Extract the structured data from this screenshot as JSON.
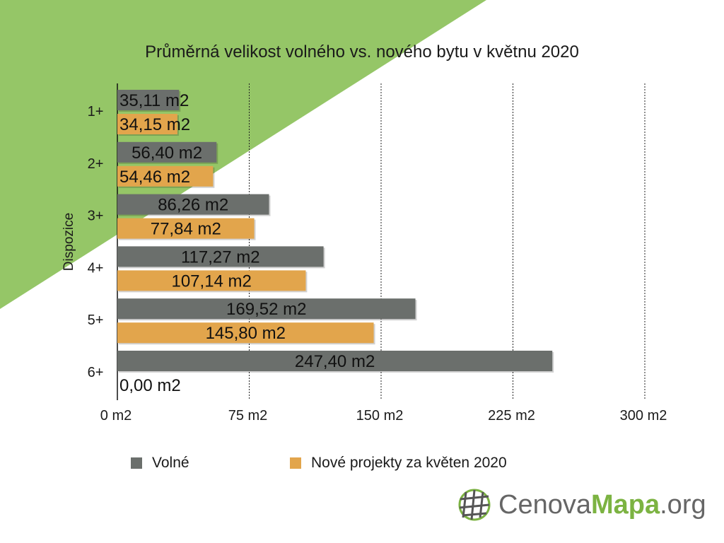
{
  "colors": {
    "background_accent": "#95c667",
    "volne": "#6b6f6c",
    "nove": "#e2a54c"
  },
  "chart_data": {
    "type": "bar",
    "orientation": "horizontal",
    "title": "Průměrná velikost volného vs. nového bytu v květnu 2020",
    "ylabel": "Dispozice",
    "xlabel": "",
    "categories": [
      "1+",
      "2+",
      "3+",
      "4+",
      "5+",
      "6+"
    ],
    "series": [
      {
        "name": "Volné",
        "color": "#6b6f6c",
        "values": [
          35.11,
          56.4,
          86.26,
          117.27,
          169.52,
          247.4
        ],
        "labels": [
          "35,11 m2",
          "56,40 m2",
          "86,26 m2",
          "117,27 m2",
          "169,52 m2",
          "247,40 m2"
        ]
      },
      {
        "name": "Nové projekty za květen 2020",
        "color": "#e2a54c",
        "values": [
          34.15,
          54.46,
          77.84,
          107.14,
          145.8,
          0.0
        ],
        "labels": [
          "34,15 m2",
          "54,46 m2",
          "77,84 m2",
          "107,14 m2",
          "145,80 m2",
          "0,00 m2"
        ]
      }
    ],
    "xlim": [
      0,
      300
    ],
    "xticks": [
      0,
      75,
      150,
      225,
      300
    ],
    "xtick_labels": [
      "0  m2",
      "75  m2",
      "150  m2",
      "225  m2",
      "300  m2"
    ],
    "grid": "vertical-dashed",
    "legend_position": "bottom"
  },
  "logo": {
    "part1": "Cenova",
    "part2": "Mapa",
    "part3": ".org"
  }
}
